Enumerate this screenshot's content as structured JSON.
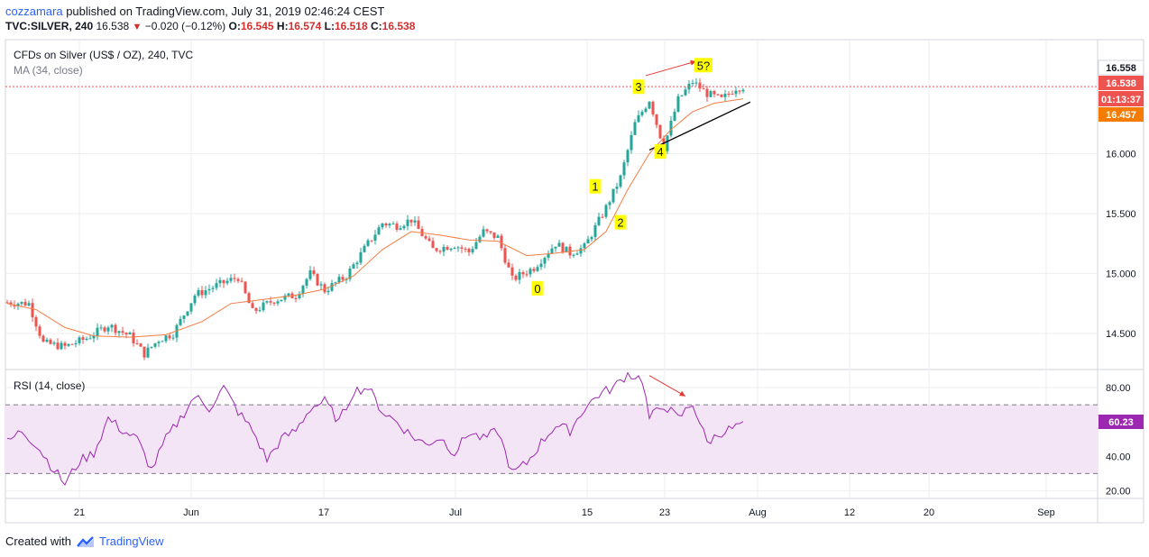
{
  "header": {
    "author": "cozzamara",
    "published": "published on TradingView.com, July 31, 2019 02:46:24 CEST",
    "symbol_line": "TVC:SILVER, 240",
    "last": "16.538",
    "change": "−0.020 (−0.12%)",
    "o_label": "O:",
    "o_value": "16.545",
    "h_label": "H:",
    "h_value": "16.574",
    "l_label": "L:",
    "l_value": "16.518",
    "c_label": "C:",
    "c_value": "16.538"
  },
  "legend": {
    "main": "CFDs on Silver (US$ / OZ), 240, TVC",
    "ma": "MA (34, close)",
    "rsi": "RSI (14, close)"
  },
  "price_tags": {
    "current": "16.558",
    "last": "16.538",
    "timer": "01:13:37",
    "ma": "16.457",
    "rsi": "60.23"
  },
  "annotations": [
    "0",
    "1",
    "2",
    "3",
    "4",
    "5?"
  ],
  "footer": {
    "created": "Created with",
    "brand": "TradingView"
  },
  "colors": {
    "up": "#26a69a",
    "down": "#ef5350",
    "ma": "#f57c42",
    "rsi": "#9c27b0",
    "rsi_band": "#f3e5f5",
    "label_bg": "#ffff00",
    "grid": "#eeeeee"
  },
  "chart_data": [
    {
      "type": "candlestick",
      "title": "CFDs on Silver (US$ / OZ), 240, TVC",
      "x_ticks": [
        "21",
        "Jun",
        "17",
        "Jul",
        "15",
        "23",
        "Aug",
        "12",
        "20",
        "Sep"
      ],
      "y_ticks": [
        "16.000",
        "15.500",
        "15.000",
        "14.500"
      ],
      "ylim": [
        14.2,
        16.95
      ],
      "close_path": [
        [
          0,
          14.76
        ],
        [
          3,
          14.75
        ],
        [
          5,
          14.42
        ],
        [
          8,
          14.39
        ],
        [
          11,
          14.46
        ],
        [
          14,
          14.57
        ],
        [
          17,
          14.48
        ],
        [
          19,
          14.33
        ],
        [
          21,
          14.45
        ],
        [
          23,
          14.5
        ],
        [
          26,
          14.82
        ],
        [
          29,
          14.9
        ],
        [
          32,
          14.97
        ],
        [
          34,
          14.68
        ],
        [
          37,
          14.78
        ],
        [
          40,
          14.82
        ],
        [
          42,
          15.0
        ],
        [
          44,
          14.86
        ],
        [
          47,
          14.98
        ],
        [
          50,
          15.25
        ],
        [
          52,
          15.42
        ],
        [
          54,
          15.4
        ],
        [
          56,
          15.45
        ],
        [
          59,
          15.2
        ],
        [
          62,
          15.24
        ],
        [
          64,
          15.18
        ],
        [
          66,
          15.35
        ],
        [
          68,
          15.3
        ],
        [
          70,
          14.95
        ],
        [
          73,
          15.05
        ],
        [
          76,
          15.25
        ],
        [
          78,
          15.17
        ],
        [
          80,
          15.22
        ],
        [
          83,
          15.55
        ],
        [
          85,
          15.8
        ],
        [
          87,
          16.25
        ],
        [
          89,
          16.45
        ],
        [
          91,
          16.05
        ],
        [
          93,
          16.45
        ],
        [
          95,
          16.6
        ],
        [
          97,
          16.5
        ],
        [
          99,
          16.45
        ],
        [
          101,
          16.55
        ],
        [
          102,
          16.558
        ]
      ],
      "ma34_path": [
        [
          0,
          14.75
        ],
        [
          4,
          14.7
        ],
        [
          8,
          14.55
        ],
        [
          12,
          14.48
        ],
        [
          17,
          14.47
        ],
        [
          22,
          14.49
        ],
        [
          27,
          14.6
        ],
        [
          31,
          14.75
        ],
        [
          35,
          14.78
        ],
        [
          40,
          14.82
        ],
        [
          44,
          14.87
        ],
        [
          48,
          14.98
        ],
        [
          52,
          15.2
        ],
        [
          56,
          15.35
        ],
        [
          60,
          15.32
        ],
        [
          64,
          15.28
        ],
        [
          68,
          15.27
        ],
        [
          72,
          15.15
        ],
        [
          76,
          15.17
        ],
        [
          80,
          15.2
        ],
        [
          83,
          15.35
        ],
        [
          86,
          15.7
        ],
        [
          89,
          16.0
        ],
        [
          92,
          16.2
        ],
        [
          95,
          16.35
        ],
        [
          98,
          16.42
        ],
        [
          102,
          16.457
        ]
      ],
      "wave_labels": [
        {
          "label": "0",
          "x": 73.5,
          "y": 14.87
        },
        {
          "label": "1",
          "x": 81.5,
          "y": 15.72
        },
        {
          "label": "2",
          "x": 85,
          "y": 15.42
        },
        {
          "label": "3",
          "x": 87.5,
          "y": 16.55
        },
        {
          "label": "4",
          "x": 90.5,
          "y": 16.01
        },
        {
          "label": "5?",
          "x": 96.5,
          "y": 16.73
        }
      ]
    },
    {
      "type": "line",
      "title": "RSI (14, close)",
      "y_ticks": [
        "80.00",
        "60.00",
        "40.00",
        "20.00"
      ],
      "ylim": [
        16,
        90
      ],
      "bands": [
        30,
        70
      ],
      "path": [
        [
          0,
          48
        ],
        [
          2,
          55
        ],
        [
          4,
          47
        ],
        [
          6,
          35
        ],
        [
          8,
          24
        ],
        [
          10,
          37
        ],
        [
          12,
          42
        ],
        [
          14,
          62
        ],
        [
          16,
          55
        ],
        [
          18,
          50
        ],
        [
          20,
          32
        ],
        [
          22,
          50
        ],
        [
          24,
          62
        ],
        [
          26,
          75
        ],
        [
          28,
          68
        ],
        [
          30,
          80
        ],
        [
          32,
          66
        ],
        [
          34,
          55
        ],
        [
          36,
          38
        ],
        [
          38,
          50
        ],
        [
          40,
          55
        ],
        [
          42,
          68
        ],
        [
          44,
          72
        ],
        [
          46,
          60
        ],
        [
          48,
          78
        ],
        [
          50,
          80
        ],
        [
          52,
          66
        ],
        [
          54,
          60
        ],
        [
          56,
          52
        ],
        [
          58,
          47
        ],
        [
          60,
          51
        ],
        [
          62,
          42
        ],
        [
          64,
          54
        ],
        [
          66,
          50
        ],
        [
          68,
          55
        ],
        [
          70,
          30
        ],
        [
          72,
          36
        ],
        [
          74,
          48
        ],
        [
          76,
          58
        ],
        [
          78,
          55
        ],
        [
          80,
          68
        ],
        [
          82,
          76
        ],
        [
          84,
          80
        ],
        [
          86,
          88
        ],
        [
          88,
          85
        ],
        [
          89,
          62
        ],
        [
          91,
          70
        ],
        [
          93,
          62
        ],
        [
          95,
          71
        ],
        [
          97,
          48
        ],
        [
          99,
          54
        ],
        [
          101,
          57
        ],
        [
          102,
          60.23
        ]
      ]
    }
  ]
}
